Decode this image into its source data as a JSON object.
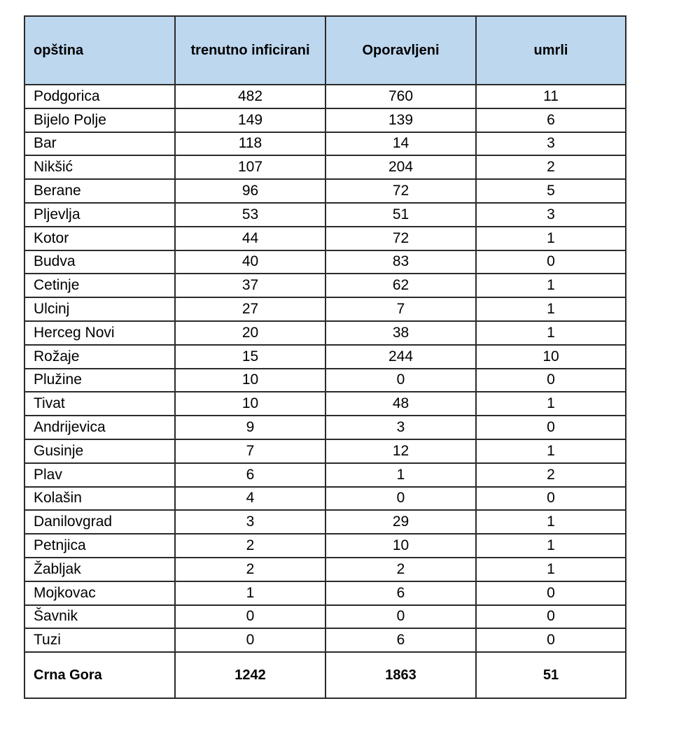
{
  "table": {
    "headers": [
      "opština",
      "trenutno inficirani",
      "Oporavljeni",
      "umrli"
    ],
    "rows": [
      [
        "Podgorica",
        "482",
        "760",
        "11"
      ],
      [
        "Bijelo Polje",
        "149",
        "139",
        "6"
      ],
      [
        "Bar",
        "118",
        "14",
        "3"
      ],
      [
        "Nikšić",
        "107",
        "204",
        "2"
      ],
      [
        "Berane",
        "96",
        "72",
        "5"
      ],
      [
        "Pljevlja",
        "53",
        "51",
        "3"
      ],
      [
        "Kotor",
        "44",
        "72",
        "1"
      ],
      [
        "Budva",
        "40",
        "83",
        "0"
      ],
      [
        "Cetinje",
        "37",
        "62",
        "1"
      ],
      [
        "Ulcinj",
        "27",
        "7",
        "1"
      ],
      [
        "Herceg Novi",
        "20",
        "38",
        "1"
      ],
      [
        "Rožaje",
        "15",
        "244",
        "10"
      ],
      [
        "Plužine",
        "10",
        "0",
        "0"
      ],
      [
        "Tivat",
        "10",
        "48",
        "1"
      ],
      [
        "Andrijevica",
        "9",
        "3",
        "0"
      ],
      [
        "Gusinje",
        "7",
        "12",
        "1"
      ],
      [
        "Plav",
        "6",
        "1",
        "2"
      ],
      [
        "Kolašin",
        "4",
        "0",
        "0"
      ],
      [
        "Danilovgrad",
        "3",
        "29",
        "1"
      ],
      [
        "Petnjica",
        "2",
        "10",
        "1"
      ],
      [
        "Žabljak",
        "2",
        "2",
        "1"
      ],
      [
        "Mojkovac",
        "1",
        "6",
        "0"
      ],
      [
        "Šavnik",
        "0",
        "0",
        "0"
      ],
      [
        "Tuzi",
        "0",
        "6",
        "0"
      ]
    ],
    "total": [
      "Crna Gora",
      "1242",
      "1863",
      "51"
    ]
  },
  "colors": {
    "header_bg": "#bdd7ee",
    "border": "#2b2b2b"
  }
}
